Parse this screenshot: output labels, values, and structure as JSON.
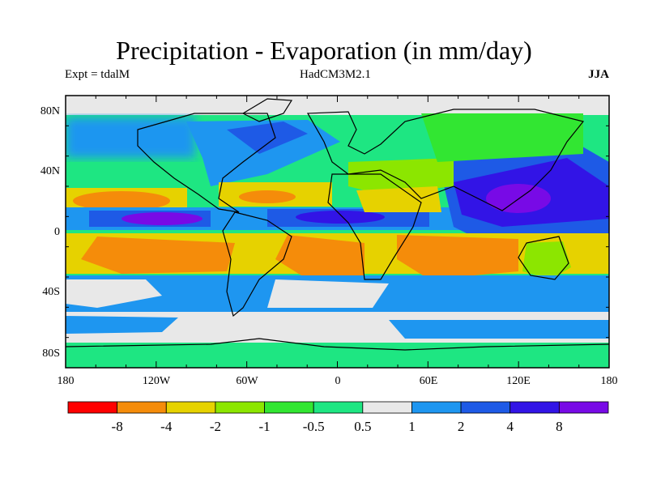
{
  "title": "Precipitation - Evaporation (in mm/day)",
  "experiment": "Expt = tdalM",
  "model": "HadCM3M2.1",
  "season": "JJA",
  "map": {
    "lat_ticks": [
      "80N",
      "40N",
      "0",
      "40S",
      "80S"
    ],
    "lon_ticks": [
      "180",
      "120W",
      "60W",
      "0",
      "60E",
      "120E",
      "180"
    ]
  },
  "colorbar": {
    "labels": [
      "-8",
      "-4",
      "-2",
      "-1",
      "-0.5",
      "0.5",
      "1",
      "2",
      "4",
      "8"
    ],
    "colors": [
      "#ff0000",
      "#f58c0a",
      "#e6d200",
      "#8ce600",
      "#32e632",
      "#1ee682",
      "#e8e8e8",
      "#1e96f0",
      "#1e5ae6",
      "#3214e6",
      "#780ae6"
    ]
  }
}
